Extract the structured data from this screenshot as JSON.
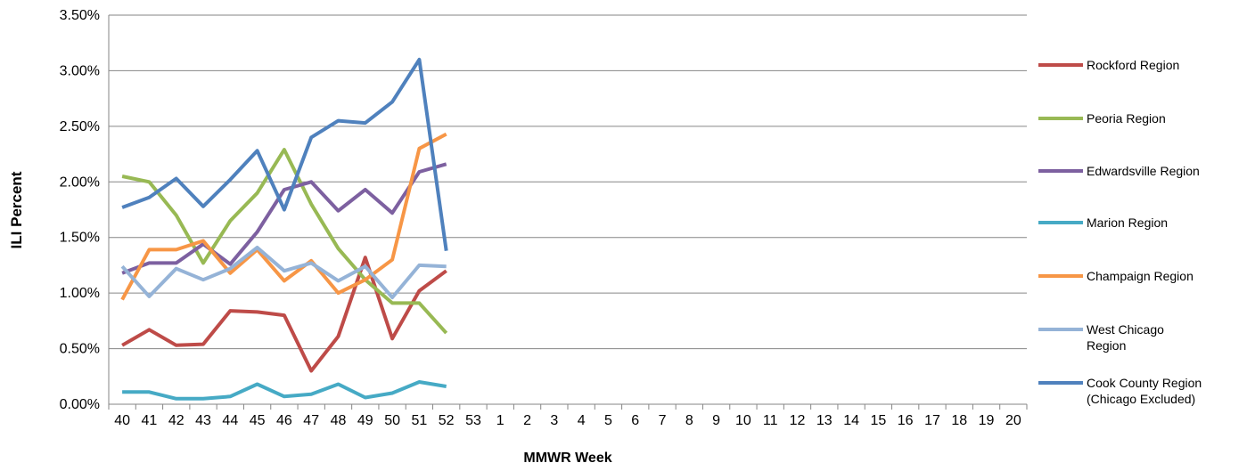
{
  "chart_data": {
    "type": "line",
    "x_label": "MMWR Week",
    "y_label": "ILI Percent",
    "categories": [
      "40",
      "41",
      "42",
      "43",
      "44",
      "45",
      "46",
      "47",
      "48",
      "49",
      "50",
      "51",
      "52",
      "53",
      "1",
      "2",
      "3",
      "4",
      "5",
      "6",
      "7",
      "8",
      "9",
      "10",
      "11",
      "12",
      "13",
      "14",
      "15",
      "16",
      "17",
      "18",
      "19",
      "20"
    ],
    "ylim": [
      0,
      3.5
    ],
    "yticks": [
      {
        "value": 0,
        "label": "0.00%"
      },
      {
        "value": 0.5,
        "label": "0.50%"
      },
      {
        "value": 1,
        "label": "1.00%"
      },
      {
        "value": 1.5,
        "label": "1.50%"
      },
      {
        "value": 2,
        "label": "2.00%"
      },
      {
        "value": 2.5,
        "label": "2.50%"
      },
      {
        "value": 3,
        "label": "3.00%"
      },
      {
        "value": 3.5,
        "label": "3.50%"
      }
    ],
    "grid": true,
    "legend": "right",
    "series": [
      {
        "name": "Rockford Region",
        "color": "#be4b48",
        "values": [
          0.53,
          0.67,
          0.53,
          0.54,
          0.84,
          0.83,
          0.8,
          0.3,
          0.61,
          1.32,
          0.59,
          1.02,
          1.2,
          null,
          null,
          null,
          null,
          null,
          null,
          null,
          null,
          null,
          null,
          null,
          null,
          null,
          null,
          null,
          null,
          null,
          null,
          null,
          null,
          null
        ]
      },
      {
        "name": "Peoria Region",
        "color": "#98b954",
        "values": [
          2.05,
          2.0,
          1.7,
          1.27,
          1.65,
          1.9,
          2.29,
          1.8,
          1.4,
          1.12,
          0.91,
          0.91,
          0.64,
          null,
          null,
          null,
          null,
          null,
          null,
          null,
          null,
          null,
          null,
          null,
          null,
          null,
          null,
          null,
          null,
          null,
          null,
          null,
          null,
          null
        ]
      },
      {
        "name": "Edwardsville Region",
        "color": "#7d60a0",
        "values": [
          1.18,
          1.27,
          1.27,
          1.44,
          1.26,
          1.55,
          1.93,
          2.0,
          1.74,
          1.93,
          1.72,
          2.09,
          2.16,
          null,
          null,
          null,
          null,
          null,
          null,
          null,
          null,
          null,
          null,
          null,
          null,
          null,
          null,
          null,
          null,
          null,
          null,
          null,
          null,
          null
        ]
      },
      {
        "name": "Marion Region",
        "color": "#46aac5",
        "values": [
          0.11,
          0.11,
          0.05,
          0.05,
          0.07,
          0.18,
          0.07,
          0.09,
          0.18,
          0.06,
          0.1,
          0.2,
          0.16,
          null,
          null,
          null,
          null,
          null,
          null,
          null,
          null,
          null,
          null,
          null,
          null,
          null,
          null,
          null,
          null,
          null,
          null,
          null,
          null,
          null
        ]
      },
      {
        "name": "Champaign Region",
        "color": "#f79646",
        "values": [
          0.94,
          1.39,
          1.39,
          1.47,
          1.18,
          1.39,
          1.11,
          1.29,
          1.0,
          1.12,
          1.3,
          2.3,
          2.43,
          null,
          null,
          null,
          null,
          null,
          null,
          null,
          null,
          null,
          null,
          null,
          null,
          null,
          null,
          null,
          null,
          null,
          null,
          null,
          null,
          null
        ]
      },
      {
        "name": "West Chicago Region",
        "color": "#95b3d7",
        "values": [
          1.24,
          0.97,
          1.22,
          1.12,
          1.22,
          1.41,
          1.2,
          1.27,
          1.11,
          1.24,
          0.96,
          1.25,
          1.24,
          null,
          null,
          null,
          null,
          null,
          null,
          null,
          null,
          null,
          null,
          null,
          null,
          null,
          null,
          null,
          null,
          null,
          null,
          null,
          null,
          null
        ]
      },
      {
        "name": "Cook County Region (Chicago Excluded)",
        "color": "#4f81bd",
        "values": [
          1.77,
          1.86,
          2.03,
          1.78,
          2.02,
          2.28,
          1.75,
          2.4,
          2.55,
          2.53,
          2.72,
          3.1,
          1.38,
          null,
          null,
          null,
          null,
          null,
          null,
          null,
          null,
          null,
          null,
          null,
          null,
          null,
          null,
          null,
          null,
          null,
          null,
          null,
          null,
          null
        ]
      }
    ]
  }
}
